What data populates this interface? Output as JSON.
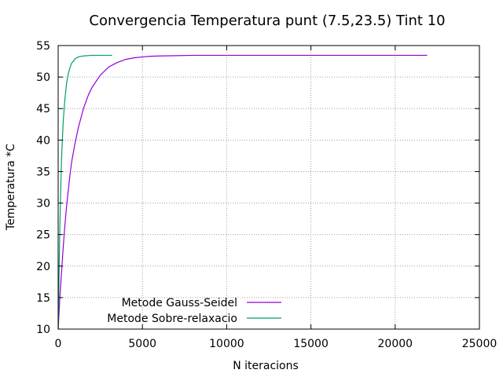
{
  "chart_data": {
    "type": "line",
    "title": "Convergencia Temperatura punt (7.5,23.5) Tint 10",
    "xlabel": "N iteracions",
    "ylabel": "Temperatura *C",
    "xlim": [
      0,
      25000
    ],
    "ylim": [
      10,
      55
    ],
    "xticks": [
      0,
      5000,
      10000,
      15000,
      20000,
      25000
    ],
    "yticks": [
      10,
      15,
      20,
      25,
      30,
      35,
      40,
      45,
      50,
      55
    ],
    "grid": true,
    "legend_position": "bottom-left",
    "series": [
      {
        "name": "Metode Gauss-Seidel",
        "color": "#9400d3",
        "x": [
          0,
          50,
          100,
          200,
          300,
          400,
          500,
          600,
          700,
          800,
          1000,
          1200,
          1500,
          1800,
          2000,
          2500,
          3000,
          3500,
          4000,
          4500,
          5000,
          5500,
          6000,
          7000,
          8000,
          10000,
          15000,
          20000,
          21900
        ],
        "y": [
          10,
          12.5,
          15,
          19,
          23,
          26.5,
          29.5,
          32,
          34.5,
          36.5,
          39.5,
          42,
          45,
          47.2,
          48.3,
          50.3,
          51.6,
          52.3,
          52.8,
          53.05,
          53.2,
          53.3,
          53.35,
          53.4,
          53.45,
          53.45,
          53.45,
          53.45,
          53.45
        ]
      },
      {
        "name": "Metode Sobre-relaxacio",
        "color": "#009e73",
        "x": [
          0,
          50,
          100,
          150,
          200,
          300,
          400,
          500,
          600,
          700,
          800,
          1000,
          1200,
          1500,
          2000,
          2500,
          3200
        ],
        "y": [
          10,
          18,
          26,
          32,
          37,
          43,
          46.5,
          49,
          50.5,
          51.5,
          52.2,
          52.9,
          53.2,
          53.35,
          53.45,
          53.45,
          53.45
        ]
      }
    ]
  }
}
